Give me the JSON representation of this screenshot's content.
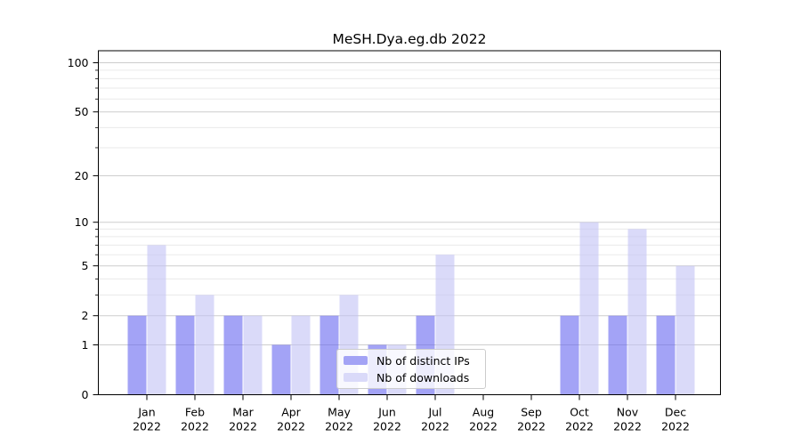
{
  "figure": {
    "background": "#ffffff"
  },
  "chart_data": {
    "type": "bar",
    "title": "MeSH.Dya.eg.db 2022",
    "categories": [
      {
        "month": "Jan",
        "year": "2022"
      },
      {
        "month": "Feb",
        "year": "2022"
      },
      {
        "month": "Mar",
        "year": "2022"
      },
      {
        "month": "Apr",
        "year": "2022"
      },
      {
        "month": "May",
        "year": "2022"
      },
      {
        "month": "Jun",
        "year": "2022"
      },
      {
        "month": "Jul",
        "year": "2022"
      },
      {
        "month": "Aug",
        "year": "2022"
      },
      {
        "month": "Sep",
        "year": "2022"
      },
      {
        "month": "Oct",
        "year": "2022"
      },
      {
        "month": "Nov",
        "year": "2022"
      },
      {
        "month": "Dec",
        "year": "2022"
      }
    ],
    "series": [
      {
        "name": "Nb of distinct IPs",
        "values": [
          2,
          2,
          2,
          1,
          2,
          1,
          2,
          0,
          0,
          2,
          2,
          2
        ],
        "fill": "rgba(102,102,240,0.6)",
        "swatch": "#a3a3f5"
      },
      {
        "name": "Nb of downloads",
        "values": [
          7,
          3,
          2,
          2,
          3,
          1,
          6,
          0,
          0,
          10,
          9,
          5
        ],
        "fill": "rgba(193,193,245,0.6)",
        "swatch": "#dadaf9"
      }
    ],
    "y_scale": "log1p",
    "ylim": [
      0,
      100
    ],
    "y_ticks": [
      0,
      1,
      2,
      5,
      10,
      20,
      50,
      100
    ],
    "y_minor_gridlines": [
      3,
      4,
      6,
      7,
      8,
      9,
      30,
      40,
      60,
      70,
      80,
      90
    ],
    "grid": true,
    "legend_position": "lower center",
    "colors": {
      "major_grid": "#cdcdcd",
      "minor_grid": "#eaeaea",
      "axis": "#000000",
      "text": "#000000"
    }
  }
}
